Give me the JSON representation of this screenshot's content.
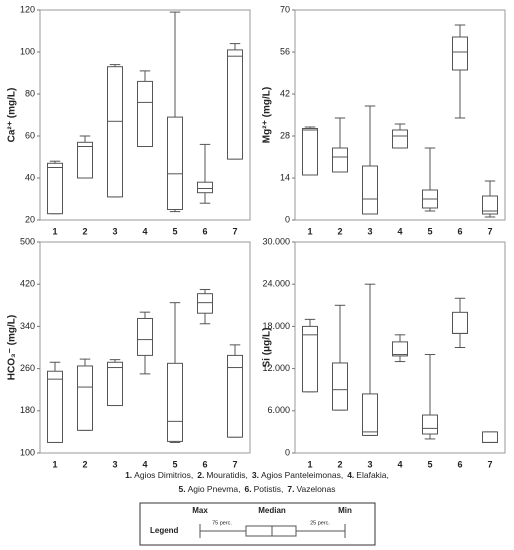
{
  "chart_data": [
    {
      "type": "box",
      "y_label": "Ca²⁺ (mg/L)",
      "categories": [
        "1",
        "2",
        "3",
        "4",
        "5",
        "6",
        "7"
      ],
      "min": [
        23,
        40,
        31,
        55,
        24,
        28,
        49
      ],
      "q1": [
        23,
        40,
        31,
        55,
        25,
        33,
        49
      ],
      "median": [
        45,
        55,
        67,
        76,
        42,
        35,
        98
      ],
      "q3": [
        47,
        57,
        93,
        86,
        69,
        38,
        101
      ],
      "max": [
        48,
        60,
        94,
        91,
        119,
        56,
        104
      ],
      "ylim": [
        20,
        120
      ],
      "yticks": [
        20,
        40,
        60,
        80,
        100,
        120
      ]
    },
    {
      "type": "box",
      "y_label": "Mg²⁺ (mg/L)",
      "categories": [
        "1",
        "2",
        "3",
        "4",
        "5",
        "6",
        "7"
      ],
      "min": [
        15,
        16,
        2,
        24,
        3,
        34,
        1
      ],
      "q1": [
        15,
        16,
        2,
        24,
        4,
        50,
        2
      ],
      "median": [
        30,
        21,
        7,
        28,
        7,
        56,
        3
      ],
      "q3": [
        30.5,
        24,
        18,
        30,
        10,
        61,
        8
      ],
      "max": [
        31,
        34,
        38,
        32,
        24,
        65,
        13
      ],
      "ylim": [
        0,
        70
      ],
      "yticks": [
        0,
        14,
        28,
        42,
        56,
        70
      ]
    },
    {
      "type": "box",
      "y_label": "HCO₃⁻ (mg/L)",
      "categories": [
        "1",
        "2",
        "3",
        "4",
        "5",
        "6",
        "7"
      ],
      "min": [
        120,
        143,
        190,
        250,
        120,
        345,
        130
      ],
      "q1": [
        120,
        143,
        190,
        285,
        122,
        365,
        130
      ],
      "median": [
        240,
        225,
        262,
        315,
        160,
        385,
        262
      ],
      "q3": [
        255,
        265,
        272,
        355,
        270,
        402,
        285
      ],
      "max": [
        272,
        278,
        277,
        367,
        385,
        410,
        305
      ],
      "ylim": [
        100,
        500
      ],
      "yticks": [
        100,
        180,
        260,
        340,
        420,
        500
      ]
    },
    {
      "type": "box",
      "y_label": "Si (μg/L)",
      "categories": [
        "1",
        "2",
        "3",
        "4",
        "5",
        "6",
        "7"
      ],
      "min": [
        8700,
        6100,
        2500,
        13000,
        2000,
        15000,
        1500
      ],
      "q1": [
        8700,
        6100,
        2500,
        13800,
        2700,
        17000,
        1500
      ],
      "median": [
        16800,
        9000,
        3000,
        14000,
        3500,
        17000,
        1500
      ],
      "q3": [
        18000,
        12800,
        8400,
        15800,
        5400,
        20000,
        3000
      ],
      "max": [
        19000,
        21000,
        24000,
        16800,
        14000,
        22000,
        3000
      ],
      "ylim": [
        0,
        30000
      ],
      "yticks": [
        0,
        {
          "value": 6000,
          "label": "6.000"
        },
        {
          "value": 12000,
          "label": "12.000"
        },
        {
          "value": 18000,
          "label": "18.000"
        },
        {
          "value": 24000,
          "label": "24.000"
        },
        {
          "value": 30000,
          "label": "30.000"
        }
      ]
    }
  ],
  "caption_lines": [
    [
      {
        "num": "1.",
        "name": "Agios Dimitrios,"
      },
      {
        "num": "2.",
        "name": "Mouratidis,"
      },
      {
        "num": "3.",
        "name": "Agios Panteleimonas,"
      },
      {
        "num": "4.",
        "name": "Elafakia,"
      }
    ],
    [
      {
        "num": "5.",
        "name": "Agio Pnevma,"
      },
      {
        "num": "6.",
        "name": "Potistis,"
      },
      {
        "num": "7.",
        "name": "Vazelonas"
      }
    ]
  ],
  "legend_key": {
    "title": "Legend",
    "max": "Max",
    "median": "Median",
    "min": "Min",
    "p75": "75 perc.",
    "p25": "25 perc."
  }
}
